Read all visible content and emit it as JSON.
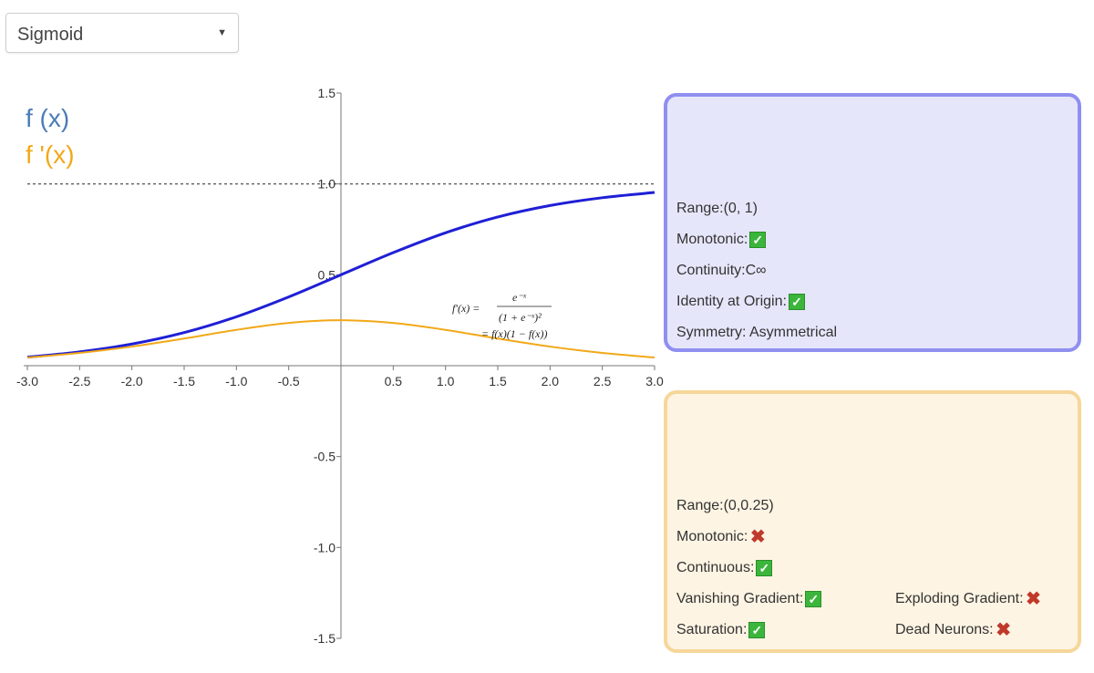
{
  "dropdown": {
    "selected": "Sigmoid",
    "arrow_icon": "caret-down-icon"
  },
  "legend": {
    "f": "f (x)",
    "fprime": "f '(x)"
  },
  "formula": {
    "line1_lhs": "f′(x) =",
    "line1_num": "e⁻ˣ",
    "line1_den": "(1 + e⁻ˣ)²",
    "line2": "= f(x)(1 − f(x))"
  },
  "chart_data": {
    "type": "line",
    "xlim": [
      -3.0,
      3.0
    ],
    "ylim": [
      -1.5,
      1.5
    ],
    "x_ticks": [
      "-3.0",
      "-2.5",
      "-2.0",
      "-1.5",
      "-1.0",
      "-0.5",
      "0.5",
      "1.0",
      "1.5",
      "2.0",
      "2.5",
      "3.0"
    ],
    "y_ticks": [
      "1.5",
      "1.0",
      "0.5",
      "-0.5",
      "-1.0",
      "-1.5"
    ],
    "asymptote_y": 1.0,
    "x": [
      -3.0,
      -2.5,
      -2.0,
      -1.5,
      -1.0,
      -0.5,
      0.0,
      0.5,
      1.0,
      1.5,
      2.0,
      2.5,
      3.0
    ],
    "series": [
      {
        "name": "f (x)",
        "color": "#1f1fd6",
        "values": [
          0.047,
          0.076,
          0.119,
          0.182,
          0.269,
          0.378,
          0.5,
          0.622,
          0.731,
          0.818,
          0.881,
          0.924,
          0.953
        ]
      },
      {
        "name": "f '(x)",
        "color": "#f2a818",
        "values": [
          0.045,
          0.07,
          0.105,
          0.149,
          0.197,
          0.235,
          0.25,
          0.235,
          0.197,
          0.149,
          0.105,
          0.07,
          0.045
        ]
      }
    ]
  },
  "fx_panel": {
    "range": "Range:(0, 1)",
    "monotonic": "Monotonic:",
    "continuity": "Continuity:C∞",
    "identity": "Identity at Origin:",
    "symmetry": "Symmetry: Asymmetrical"
  },
  "fpx_panel": {
    "range": "Range:(0,0.25)",
    "monotonic": "Monotonic:",
    "continuous": "Continuous:",
    "vanishing": "Vanishing Gradient:",
    "exploding": "Exploding Gradient:",
    "saturation": "Saturation:",
    "dead": "Dead Neurons:"
  },
  "icons": {
    "check": "✓",
    "cross": "✖"
  }
}
